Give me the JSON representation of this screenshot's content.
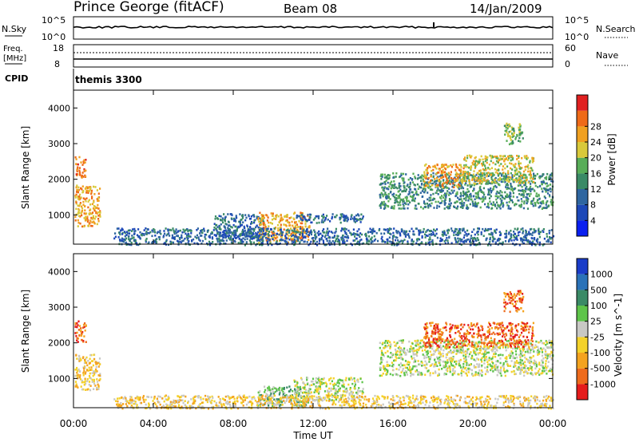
{
  "header": {
    "station": "Prince George (fitACF)",
    "beam": "Beam 08",
    "date": "14/Jan/2009"
  },
  "panels": {
    "nsky": {
      "label": "N.Sky",
      "tick_top": "10^5",
      "tick_bottom": "10^0"
    },
    "nsearch": {
      "label": "N.Search",
      "tick_top": "10^5",
      "tick_bottom": "10^0"
    },
    "freq": {
      "label_line1": "Freq.",
      "label_line2": "[MHz]",
      "tick_top": "18",
      "tick_bottom": "8"
    },
    "nave": {
      "label": "Nave",
      "tick_top": "60",
      "tick_bottom": "0"
    },
    "cpid": {
      "label": "CPID",
      "value": "themis 3300"
    }
  },
  "chart_data": [
    {
      "type": "heatmap",
      "name": "power",
      "ylabel": "Slant Range [km]",
      "ylim": [
        180,
        4500
      ],
      "yticks": [
        1000,
        2000,
        3000,
        4000
      ],
      "x_range_hours": [
        0,
        24
      ],
      "xticks": [
        "00:00",
        "04:00",
        "08:00",
        "12:00",
        "16:00",
        "20:00",
        "00:00"
      ],
      "colorbar": {
        "label": "Power [dB]",
        "ticks": [
          "4",
          "8",
          "12",
          "16",
          "20",
          "24",
          "28"
        ],
        "colors": [
          "#0a1ff0",
          "#1d48b8",
          "#2f66a0",
          "#3a8a66",
          "#58ad58",
          "#d9c93a",
          "#f0a020",
          "#ef6a18",
          "#e02020"
        ]
      },
      "regions": [
        {
          "t0": 0.05,
          "t1": 1.3,
          "r0": 700,
          "r1": 1850,
          "level": 6
        },
        {
          "t0": 0.05,
          "t1": 0.6,
          "r0": 2050,
          "r1": 2650,
          "level": 7
        },
        {
          "t0": 7.0,
          "t1": 9.5,
          "r0": 300,
          "r1": 1050,
          "level": 2
        },
        {
          "t0": 9.2,
          "t1": 11.8,
          "r0": 250,
          "r1": 1100,
          "level": 6
        },
        {
          "t0": 11.0,
          "t1": 14.5,
          "r0": 800,
          "r1": 1050,
          "level": 2
        },
        {
          "t0": 15.3,
          "t1": 24.0,
          "r0": 1200,
          "r1": 2200,
          "level": 3
        },
        {
          "t0": 17.5,
          "t1": 19.5,
          "r0": 1800,
          "r1": 2450,
          "level": 6
        },
        {
          "t0": 19.5,
          "t1": 23.0,
          "r0": 1900,
          "r1": 2700,
          "level": 5
        },
        {
          "t0": 21.5,
          "t1": 22.5,
          "r0": 3000,
          "r1": 3600,
          "level": 4
        },
        {
          "t0": 2.0,
          "t1": 24.0,
          "r0": 180,
          "r1": 650,
          "level": 2
        }
      ]
    },
    {
      "type": "heatmap",
      "name": "velocity",
      "ylabel": "Slant Range [km]",
      "xlabel": "Time UT",
      "ylim": [
        180,
        4500
      ],
      "yticks": [
        1000,
        2000,
        3000,
        4000
      ],
      "x_range_hours": [
        0,
        24
      ],
      "xticks": [
        "00:00",
        "04:00",
        "08:00",
        "12:00",
        "16:00",
        "20:00",
        "00:00"
      ],
      "colorbar": {
        "label": "Velocity [m s^-1]",
        "ticks": [
          "1000",
          "500",
          "100",
          "25",
          "-25",
          "-100",
          "-500",
          "-1000"
        ],
        "colors": [
          "#1a3cc8",
          "#2a72b8",
          "#3a8a66",
          "#5ec44a",
          "#c8c8c4",
          "#f4d22a",
          "#f4a31f",
          "#ee6b1c",
          "#e51c1c"
        ]
      },
      "regions": [
        {
          "t0": 0.05,
          "t1": 1.3,
          "r0": 700,
          "r1": 1700,
          "level": 5
        },
        {
          "t0": 0.05,
          "t1": 0.6,
          "r0": 2050,
          "r1": 2650,
          "level": 7
        },
        {
          "t0": 9.2,
          "t1": 11.8,
          "r0": 250,
          "r1": 800,
          "level": 3
        },
        {
          "t0": 11.0,
          "t1": 14.5,
          "r0": 400,
          "r1": 1050,
          "level": 4
        },
        {
          "t0": 15.3,
          "t1": 24.0,
          "r0": 1100,
          "r1": 2100,
          "level": 4
        },
        {
          "t0": 17.5,
          "t1": 23.0,
          "r0": 1900,
          "r1": 2600,
          "level": 7
        },
        {
          "t0": 21.5,
          "t1": 22.5,
          "r0": 2900,
          "r1": 3500,
          "level": 7
        },
        {
          "t0": 2.0,
          "t1": 24.0,
          "r0": 180,
          "r1": 550,
          "level": 5
        }
      ]
    }
  ]
}
